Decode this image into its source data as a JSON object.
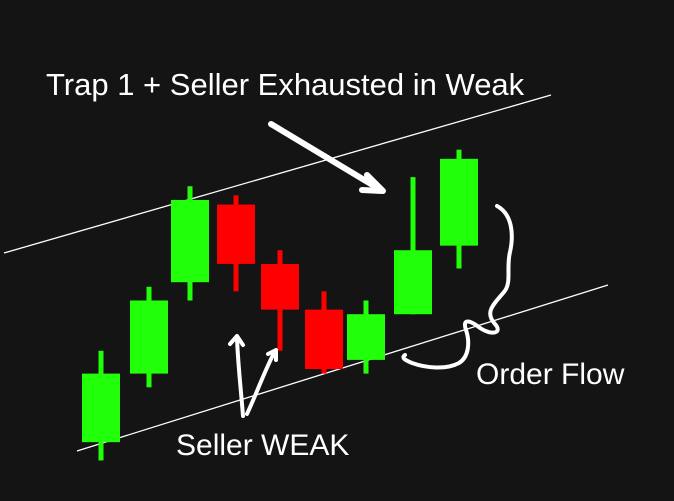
{
  "colors": {
    "background": "#141414",
    "bullish": "#22ff0a",
    "bearish": "#ff0000",
    "annotation": "#ffffff"
  },
  "annotations": {
    "title": "Trap 1 + Seller Exhausted in Weak",
    "seller_weak": "Seller WEAK",
    "order_flow": "Order Flow"
  },
  "chart_data": {
    "type": "candlestick",
    "axes_shown": false,
    "grid": false,
    "trend_channel": true,
    "candles": [
      {
        "direction": "up",
        "open": 1.2,
        "close": 2.7,
        "high": 3.2,
        "low": 0.8
      },
      {
        "direction": "up",
        "open": 2.7,
        "close": 4.3,
        "high": 4.6,
        "low": 2.4
      },
      {
        "direction": "up",
        "open": 4.7,
        "close": 6.5,
        "high": 6.8,
        "low": 4.3
      },
      {
        "direction": "down",
        "open": 6.4,
        "close": 5.1,
        "high": 6.6,
        "low": 4.5
      },
      {
        "direction": "down",
        "open": 5.1,
        "close": 4.1,
        "high": 5.4,
        "low": 3.2
      },
      {
        "direction": "down",
        "open": 4.1,
        "close": 2.8,
        "high": 4.5,
        "low": 2.7
      },
      {
        "direction": "up",
        "open": 3.0,
        "close": 4.0,
        "high": 4.3,
        "low": 2.7
      },
      {
        "direction": "up",
        "open": 4.0,
        "close": 5.4,
        "high": 7.0,
        "low": 4.0
      },
      {
        "direction": "up",
        "open": 5.5,
        "close": 7.4,
        "high": 7.6,
        "low": 5.0
      }
    ]
  }
}
